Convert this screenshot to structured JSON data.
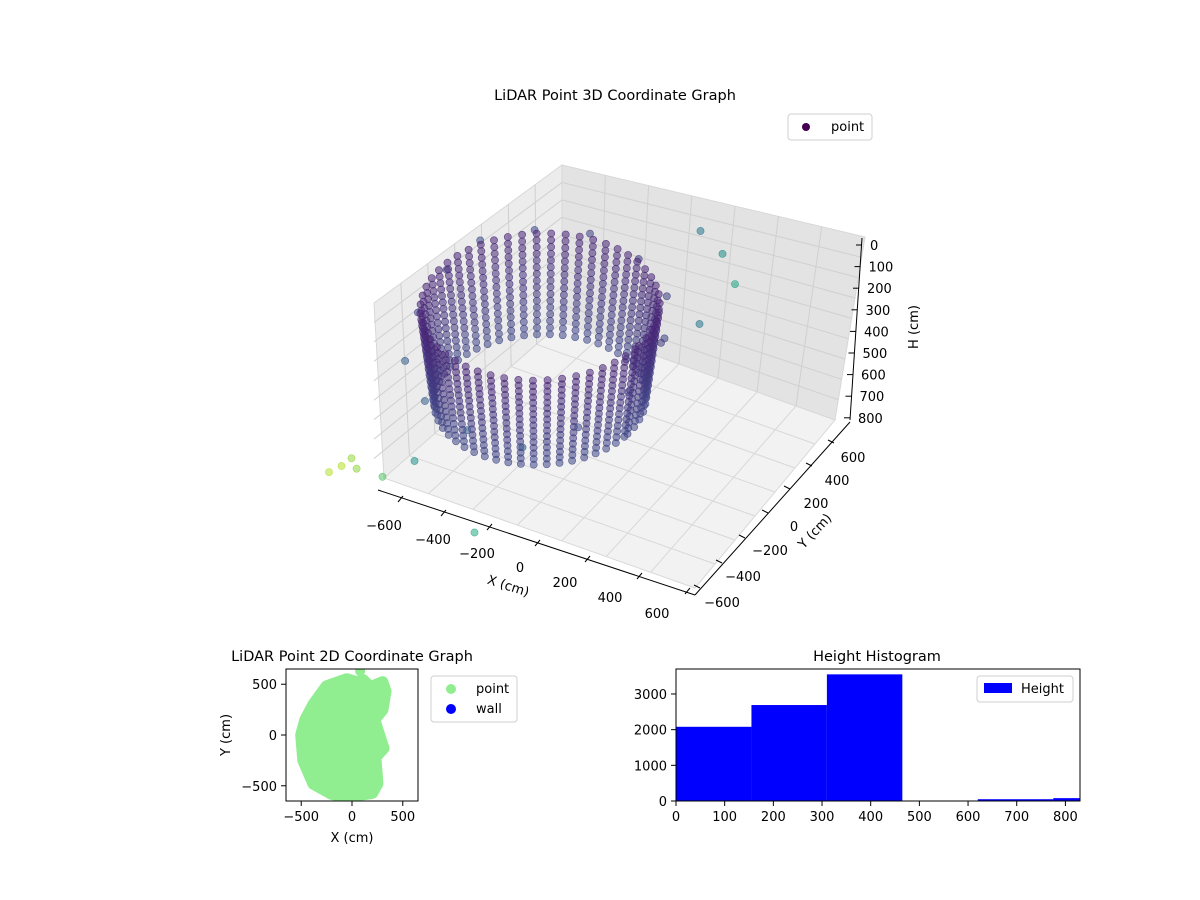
{
  "chart_data": [
    {
      "type": "scatter",
      "projection": "3d",
      "title": "LiDAR Point 3D Coordinate Graph",
      "xlabel": "X (cm)",
      "ylabel": "Y (cm)",
      "zlabel": "H (cm)",
      "x_ticks": [
        "−600",
        "−400",
        "−200",
        "0",
        "200",
        "400",
        "600"
      ],
      "y_ticks": [
        "−600",
        "−400",
        "−200",
        "0",
        "200",
        "400",
        "600"
      ],
      "z_ticks": [
        "0",
        "100",
        "200",
        "300",
        "400",
        "500",
        "600",
        "700",
        "800"
      ],
      "xlim": [
        -700,
        700
      ],
      "ylim": [
        -700,
        700
      ],
      "zlim": [
        0,
        850
      ],
      "z_inverted": true,
      "grid": true,
      "legend": {
        "entries": [
          "point"
        ],
        "placement": "top-right"
      },
      "colormap": "viridis",
      "point_color": "#440154",
      "series": [
        {
          "name": "point",
          "description_points": "dense ring of points, radius ~520 cm, heights ~200-550 cm, plus sparse outliers",
          "points": [
            [
              -520,
              300,
              230
            ],
            [
              -560,
              100,
              260
            ],
            [
              -540,
              -150,
              300
            ],
            [
              -450,
              -380,
              350
            ],
            [
              -250,
              -520,
              380
            ],
            [
              0,
              -560,
              400
            ],
            [
              250,
              -500,
              420
            ],
            [
              420,
              -320,
              380
            ],
            [
              520,
              -80,
              330
            ],
            [
              500,
              200,
              280
            ],
            [
              380,
              420,
              240
            ],
            [
              150,
              540,
              220
            ],
            [
              -120,
              560,
              210
            ],
            [
              -350,
              470,
              220
            ],
            [
              -600,
              -650,
              650
            ],
            [
              -650,
              -500,
              700
            ],
            [
              -700,
              -600,
              720
            ],
            [
              -500,
              -680,
              620
            ],
            [
              -350,
              -700,
              600
            ],
            [
              -250,
              -600,
              560
            ],
            [
              100,
              -650,
              700
            ],
            [
              400,
              650,
              100
            ],
            [
              550,
              600,
              120
            ],
            [
              650,
              550,
              180
            ],
            [
              600,
              350,
              250
            ],
            [
              450,
              300,
              320
            ]
          ]
        }
      ]
    },
    {
      "type": "scatter",
      "title": "LiDAR Point 2D Coordinate Graph",
      "xlabel": "X (cm)",
      "ylabel": "Y (cm)",
      "x_ticks": [
        "−500",
        "0",
        "500"
      ],
      "y_ticks": [
        "500",
        "0",
        "−500"
      ],
      "xlim": [
        -650,
        650
      ],
      "ylim": [
        -650,
        650
      ],
      "legend": {
        "entries": [
          "point",
          "wall"
        ],
        "placement": "outside-right"
      },
      "series": [
        {
          "name": "point",
          "color": "#90ee90",
          "outline": [
            [
              -380,
              300
            ],
            [
              -250,
              480
            ],
            [
              -50,
              550
            ],
            [
              50,
              520
            ],
            [
              110,
              540
            ],
            [
              180,
              470
            ],
            [
              300,
              520
            ],
            [
              330,
              430
            ],
            [
              300,
              250
            ],
            [
              220,
              150
            ],
            [
              310,
              -130
            ],
            [
              230,
              -220
            ],
            [
              250,
              -480
            ],
            [
              200,
              -570
            ],
            [
              0,
              -600
            ],
            [
              -200,
              -580
            ],
            [
              -380,
              -480
            ],
            [
              -480,
              -250
            ],
            [
              -500,
              0
            ],
            [
              -460,
              150
            ]
          ],
          "outliers": [
            [
              -390,
              -480
            ],
            [
              -140,
              -640
            ],
            [
              80,
              630
            ],
            [
              290,
              -50
            ]
          ]
        },
        {
          "name": "wall",
          "color": "#0000ff",
          "points": []
        }
      ]
    },
    {
      "type": "bar",
      "subtype": "histogram",
      "title": "Height Histogram",
      "x_ticks": [
        "0",
        "100",
        "200",
        "300",
        "400",
        "500",
        "600",
        "700",
        "800"
      ],
      "y_ticks": [
        "0",
        "1000",
        "2000",
        "3000"
      ],
      "xlim": [
        0,
        830
      ],
      "ylim": [
        0,
        3700
      ],
      "legend": {
        "entries": [
          "Height"
        ],
        "placement": "top-right"
      },
      "color": "#0000ff",
      "bins": [
        {
          "from": 0,
          "to": 155,
          "value": 2080
        },
        {
          "from": 155,
          "to": 310,
          "value": 2690
        },
        {
          "from": 310,
          "to": 465,
          "value": 3550
        },
        {
          "from": 465,
          "to": 620,
          "value": 0
        },
        {
          "from": 620,
          "to": 775,
          "value": 50
        },
        {
          "from": 775,
          "to": 930,
          "value": 80
        }
      ]
    }
  ]
}
